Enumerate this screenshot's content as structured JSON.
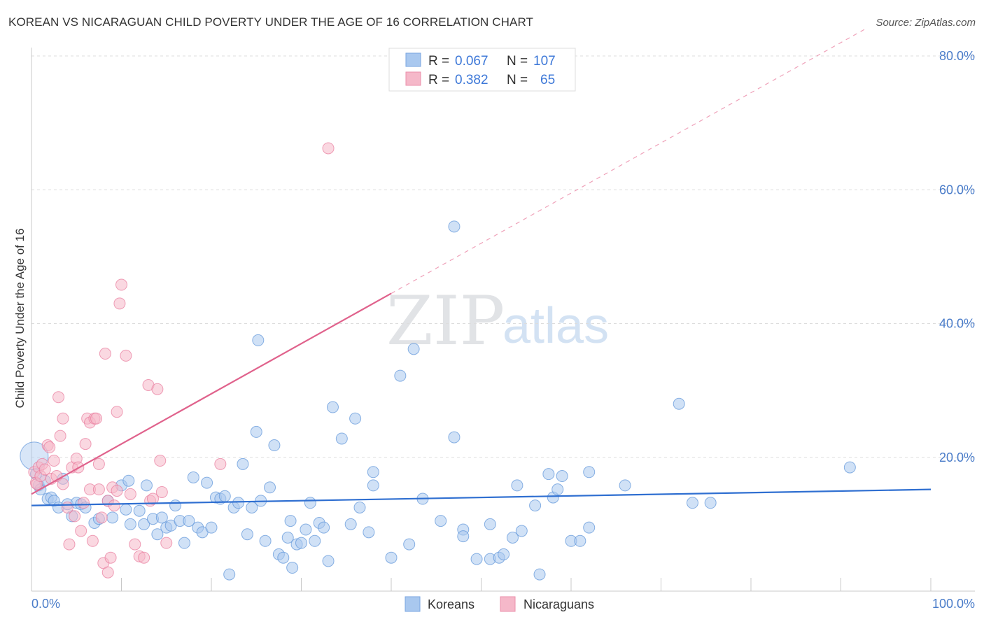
{
  "title": "KOREAN VS NICARAGUAN CHILD POVERTY UNDER THE AGE OF 16 CORRELATION CHART",
  "source": "Source: ZipAtlas.com",
  "watermark": {
    "part1": "ZIP",
    "part2": "atlas"
  },
  "legend": {
    "rows": [
      {
        "r_label": "R =",
        "r_value": "0.067",
        "n_label": "N =",
        "n_value": "107",
        "color": "#a9c8ef"
      },
      {
        "r_label": "R =",
        "r_value": "0.382",
        "n_label": "N =",
        "n_value": "65",
        "color": "#f5b8c9"
      }
    ]
  },
  "bottom_legend": {
    "koreans": "Koreans",
    "nicaraguans": "Nicaraguans"
  },
  "chart_data": {
    "type": "scatter",
    "title": "KOREAN VS NICARAGUAN CHILD POVERTY UNDER THE AGE OF 16 CORRELATION CHART",
    "xlabel": "",
    "ylabel": "Child Poverty Under the Age of 16",
    "xlim": [
      0,
      100
    ],
    "ylim": [
      0,
      80
    ],
    "x_ticks": [
      "0.0%",
      "100.0%"
    ],
    "y_ticks": [
      {
        "value": 20,
        "label": "20.0%"
      },
      {
        "value": 40,
        "label": "40.0%"
      },
      {
        "value": 60,
        "label": "60.0%"
      },
      {
        "value": 80,
        "label": "80.0%"
      }
    ],
    "grid": true,
    "series": [
      {
        "name": "Koreans",
        "color": "#5b93d9",
        "fill": "#a9c8ef",
        "trend": {
          "x0": 0,
          "y0": 12.8,
          "x1": 100,
          "y1": 15.2
        },
        "points": [
          [
            0.3,
            20.2
          ],
          [
            0.5,
            17.5
          ],
          [
            0.8,
            15.8
          ],
          [
            1.0,
            15.2
          ],
          [
            1.5,
            16.5
          ],
          [
            1.8,
            13.8
          ],
          [
            2.2,
            14.0
          ],
          [
            2.5,
            13.5
          ],
          [
            3.0,
            12.5
          ],
          [
            3.5,
            16.8
          ],
          [
            4.0,
            13.0
          ],
          [
            4.5,
            11.2
          ],
          [
            5.0,
            13.2
          ],
          [
            5.5,
            13.0
          ],
          [
            6.0,
            12.5
          ],
          [
            7.0,
            10.2
          ],
          [
            7.5,
            10.8
          ],
          [
            8.5,
            13.5
          ],
          [
            9.0,
            11.0
          ],
          [
            10.0,
            15.8
          ],
          [
            10.5,
            12.2
          ],
          [
            10.8,
            16.5
          ],
          [
            11.0,
            10.0
          ],
          [
            12.0,
            12.0
          ],
          [
            12.5,
            10.0
          ],
          [
            12.8,
            15.8
          ],
          [
            13.5,
            10.8
          ],
          [
            14.0,
            8.5
          ],
          [
            14.5,
            11.0
          ],
          [
            15.0,
            9.5
          ],
          [
            15.5,
            9.8
          ],
          [
            16.0,
            12.8
          ],
          [
            16.5,
            10.5
          ],
          [
            17.0,
            7.2
          ],
          [
            17.5,
            10.5
          ],
          [
            18.0,
            17.0
          ],
          [
            18.5,
            9.5
          ],
          [
            19.0,
            8.8
          ],
          [
            19.5,
            16.2
          ],
          [
            20.0,
            9.5
          ],
          [
            20.5,
            14.0
          ],
          [
            21.0,
            13.8
          ],
          [
            21.5,
            14.2
          ],
          [
            22.0,
            2.5
          ],
          [
            22.5,
            12.5
          ],
          [
            23.0,
            13.2
          ],
          [
            23.5,
            19.0
          ],
          [
            24.0,
            8.5
          ],
          [
            24.5,
            12.5
          ],
          [
            25.0,
            23.8
          ],
          [
            25.2,
            37.5
          ],
          [
            25.5,
            13.5
          ],
          [
            26.0,
            7.5
          ],
          [
            26.5,
            15.5
          ],
          [
            27.0,
            21.8
          ],
          [
            27.5,
            5.5
          ],
          [
            28.0,
            5.0
          ],
          [
            28.5,
            8.0
          ],
          [
            28.8,
            10.5
          ],
          [
            29.0,
            3.5
          ],
          [
            29.5,
            7.0
          ],
          [
            30.0,
            7.2
          ],
          [
            30.5,
            9.2
          ],
          [
            31.0,
            13.2
          ],
          [
            31.5,
            7.5
          ],
          [
            32.0,
            10.2
          ],
          [
            32.5,
            9.5
          ],
          [
            33.0,
            4.5
          ],
          [
            33.5,
            27.5
          ],
          [
            34.5,
            22.8
          ],
          [
            35.5,
            10.0
          ],
          [
            36.0,
            25.8
          ],
          [
            36.5,
            12.5
          ],
          [
            37.5,
            8.8
          ],
          [
            38.0,
            17.8
          ],
          [
            38.0,
            15.8
          ],
          [
            40.0,
            5.0
          ],
          [
            41.0,
            32.2
          ],
          [
            42.0,
            7.0
          ],
          [
            42.5,
            36.2
          ],
          [
            43.5,
            13.8
          ],
          [
            45.5,
            10.5
          ],
          [
            47.0,
            23.0
          ],
          [
            47.0,
            54.5
          ],
          [
            48.0,
            9.2
          ],
          [
            48.0,
            8.2
          ],
          [
            49.5,
            4.8
          ],
          [
            51.0,
            10.0
          ],
          [
            51.0,
            4.8
          ],
          [
            52.0,
            5.0
          ],
          [
            52.5,
            5.5
          ],
          [
            53.5,
            8.0
          ],
          [
            54.0,
            15.8
          ],
          [
            54.5,
            9.0
          ],
          [
            56.0,
            12.8
          ],
          [
            56.5,
            2.5
          ],
          [
            57.5,
            17.5
          ],
          [
            58.0,
            14.0
          ],
          [
            58.5,
            15.2
          ],
          [
            59.0,
            17.2
          ],
          [
            60.0,
            7.5
          ],
          [
            61.0,
            7.5
          ],
          [
            62.0,
            9.5
          ],
          [
            62.0,
            17.8
          ],
          [
            66.0,
            15.8
          ],
          [
            72.0,
            28.0
          ],
          [
            73.5,
            13.2
          ],
          [
            75.5,
            13.2
          ],
          [
            91.0,
            18.5
          ]
        ]
      },
      {
        "name": "Nicaraguans",
        "color": "#e8799b",
        "fill": "#f5b8c9",
        "trend": {
          "x0": 0,
          "y0": 14.5,
          "x1": 40,
          "y1": 44.5
        },
        "trend_extension": {
          "x0": 40,
          "y0": 44.5,
          "x1": 100,
          "y1": 89.5
        },
        "points": [
          [
            0.3,
            17.8
          ],
          [
            0.5,
            16.2
          ],
          [
            0.6,
            16.0
          ],
          [
            0.8,
            18.5
          ],
          [
            1.0,
            17.2
          ],
          [
            1.2,
            19.0
          ],
          [
            1.5,
            18.2
          ],
          [
            1.8,
            21.8
          ],
          [
            2.0,
            21.5
          ],
          [
            2.2,
            16.8
          ],
          [
            2.5,
            19.5
          ],
          [
            2.8,
            17.2
          ],
          [
            3.0,
            29.0
          ],
          [
            3.2,
            23.2
          ],
          [
            3.5,
            25.8
          ],
          [
            3.5,
            16.0
          ],
          [
            4.0,
            12.5
          ],
          [
            4.2,
            7.0
          ],
          [
            4.5,
            18.5
          ],
          [
            4.8,
            11.2
          ],
          [
            5.0,
            19.8
          ],
          [
            5.2,
            18.5
          ],
          [
            5.5,
            9.0
          ],
          [
            5.8,
            13.2
          ],
          [
            6.0,
            22.0
          ],
          [
            6.2,
            25.8
          ],
          [
            6.5,
            25.2
          ],
          [
            6.5,
            15.2
          ],
          [
            6.8,
            7.5
          ],
          [
            7.0,
            25.8
          ],
          [
            7.2,
            25.8
          ],
          [
            7.5,
            19.0
          ],
          [
            7.5,
            15.2
          ],
          [
            7.8,
            11.0
          ],
          [
            8.0,
            4.2
          ],
          [
            8.2,
            35.5
          ],
          [
            8.5,
            13.5
          ],
          [
            8.5,
            2.8
          ],
          [
            8.8,
            5.0
          ],
          [
            9.0,
            15.5
          ],
          [
            9.2,
            12.8
          ],
          [
            9.5,
            26.8
          ],
          [
            9.5,
            15.0
          ],
          [
            9.8,
            43.0
          ],
          [
            10.0,
            45.8
          ],
          [
            10.5,
            35.2
          ],
          [
            11.0,
            14.5
          ],
          [
            11.5,
            7.0
          ],
          [
            12.0,
            5.2
          ],
          [
            12.5,
            5.0
          ],
          [
            13.0,
            30.8
          ],
          [
            13.2,
            13.5
          ],
          [
            13.5,
            13.8
          ],
          [
            14.0,
            30.2
          ],
          [
            14.3,
            19.5
          ],
          [
            14.5,
            14.8
          ],
          [
            15.0,
            7.2
          ],
          [
            21.0,
            19.0
          ],
          [
            33.0,
            66.2
          ]
        ]
      }
    ]
  }
}
